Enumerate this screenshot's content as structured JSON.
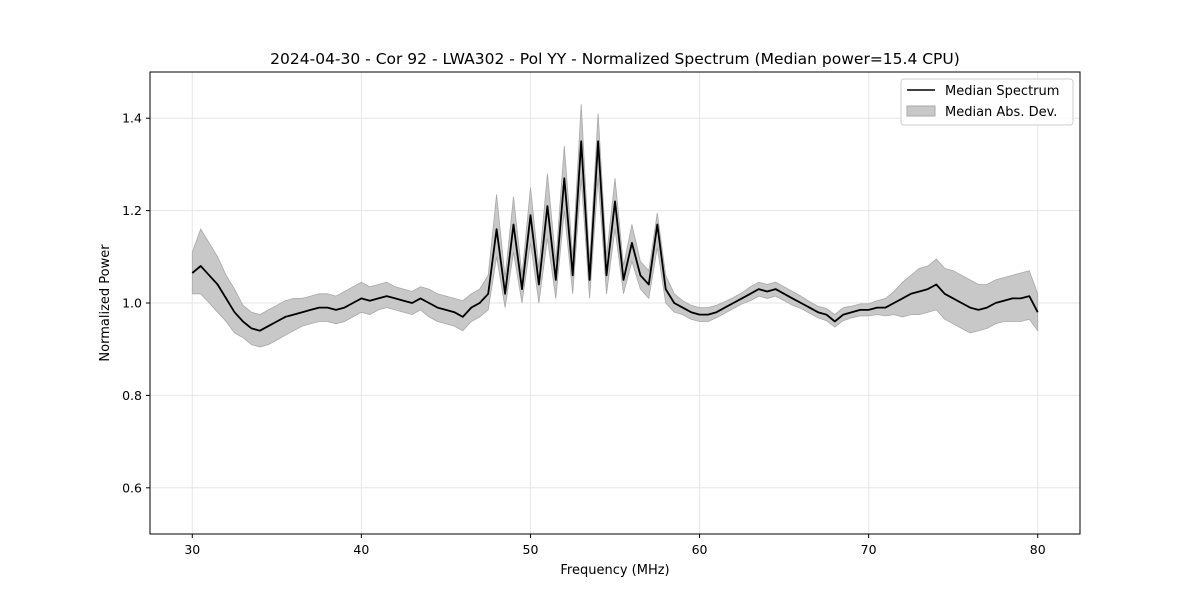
{
  "chart_data": {
    "type": "line",
    "title": "2024-04-30 - Cor 92 - LWA302 - Pol YY - Normalized Spectrum (Median power=15.4 CPU)",
    "xlabel": "Frequency (MHz)",
    "ylabel": "Normalized Power",
    "xlim": [
      27.5,
      82.5
    ],
    "ylim": [
      0.5,
      1.5
    ],
    "x_ticks": [
      30,
      40,
      50,
      60,
      70,
      80
    ],
    "x_tick_labels": [
      "30",
      "40",
      "50",
      "60",
      "70",
      "80"
    ],
    "y_ticks": [
      0.6,
      0.8,
      1.0,
      1.2,
      1.4
    ],
    "y_tick_labels": [
      "0.6",
      "0.8",
      "1.0",
      "1.2",
      "1.4"
    ],
    "grid": true,
    "legend_position": "top-right",
    "legend": [
      {
        "label": "Median Spectrum",
        "kind": "line",
        "color": "#000000"
      },
      {
        "label": "Median Abs. Dev.",
        "kind": "band",
        "color": "#c8c8c8"
      }
    ],
    "colors": {
      "line": "#000000",
      "band": "#c8c8c8",
      "band_edge": "#a8a8a8",
      "grid": "#e6e6e6"
    },
    "series": [
      {
        "name": "Median Spectrum",
        "x": [
          30.0,
          30.5,
          31.0,
          31.5,
          32.0,
          32.5,
          33.0,
          33.5,
          34.0,
          34.5,
          35.0,
          35.5,
          36.0,
          36.5,
          37.0,
          37.5,
          38.0,
          38.5,
          39.0,
          39.5,
          40.0,
          40.5,
          41.0,
          41.5,
          42.0,
          42.5,
          43.0,
          43.5,
          44.0,
          44.5,
          45.0,
          45.5,
          46.0,
          46.5,
          47.0,
          47.5,
          48.0,
          48.5,
          49.0,
          49.5,
          50.0,
          50.5,
          51.0,
          51.5,
          52.0,
          52.5,
          53.0,
          53.5,
          54.0,
          54.5,
          55.0,
          55.5,
          56.0,
          56.5,
          57.0,
          57.5,
          58.0,
          58.5,
          59.0,
          59.5,
          60.0,
          60.5,
          61.0,
          61.5,
          62.0,
          62.5,
          63.0,
          63.5,
          64.0,
          64.5,
          65.0,
          65.5,
          66.0,
          66.5,
          67.0,
          67.5,
          68.0,
          68.5,
          69.0,
          69.5,
          70.0,
          70.5,
          71.0,
          71.5,
          72.0,
          72.5,
          73.0,
          73.5,
          74.0,
          74.5,
          75.0,
          75.5,
          76.0,
          76.5,
          77.0,
          77.5,
          78.0,
          78.5,
          79.0,
          79.5,
          80.0
        ],
        "values": [
          1.065,
          1.08,
          1.06,
          1.04,
          1.01,
          0.98,
          0.96,
          0.945,
          0.94,
          0.95,
          0.96,
          0.97,
          0.975,
          0.98,
          0.985,
          0.99,
          0.99,
          0.985,
          0.99,
          1.0,
          1.01,
          1.005,
          1.01,
          1.015,
          1.01,
          1.005,
          1.0,
          1.01,
          1.0,
          0.99,
          0.985,
          0.98,
          0.97,
          0.99,
          1.0,
          1.02,
          1.16,
          1.02,
          1.17,
          1.03,
          1.19,
          1.04,
          1.21,
          1.05,
          1.27,
          1.06,
          1.35,
          1.05,
          1.35,
          1.06,
          1.22,
          1.05,
          1.13,
          1.06,
          1.04,
          1.17,
          1.03,
          1.0,
          0.99,
          0.98,
          0.975,
          0.975,
          0.98,
          0.99,
          1.0,
          1.01,
          1.02,
          1.03,
          1.025,
          1.03,
          1.02,
          1.01,
          1.0,
          0.99,
          0.98,
          0.975,
          0.96,
          0.975,
          0.98,
          0.985,
          0.985,
          0.99,
          0.99,
          1.0,
          1.01,
          1.02,
          1.025,
          1.03,
          1.04,
          1.02,
          1.01,
          1.0,
          0.99,
          0.985,
          0.99,
          1.0,
          1.005,
          1.01,
          1.01,
          1.015,
          0.98
        ]
      },
      {
        "name": "Median Abs. Dev.",
        "x": [
          30.0,
          30.5,
          31.0,
          31.5,
          32.0,
          32.5,
          33.0,
          33.5,
          34.0,
          34.5,
          35.0,
          35.5,
          36.0,
          36.5,
          37.0,
          37.5,
          38.0,
          38.5,
          39.0,
          39.5,
          40.0,
          40.5,
          41.0,
          41.5,
          42.0,
          42.5,
          43.0,
          43.5,
          44.0,
          44.5,
          45.0,
          45.5,
          46.0,
          46.5,
          47.0,
          47.5,
          48.0,
          48.5,
          49.0,
          49.5,
          50.0,
          50.5,
          51.0,
          51.5,
          52.0,
          52.5,
          53.0,
          53.5,
          54.0,
          54.5,
          55.0,
          55.5,
          56.0,
          56.5,
          57.0,
          57.5,
          58.0,
          58.5,
          59.0,
          59.5,
          60.0,
          60.5,
          61.0,
          61.5,
          62.0,
          62.5,
          63.0,
          63.5,
          64.0,
          64.5,
          65.0,
          65.5,
          66.0,
          66.5,
          67.0,
          67.5,
          68.0,
          68.5,
          69.0,
          69.5,
          70.0,
          70.5,
          71.0,
          71.5,
          72.0,
          72.5,
          73.0,
          73.5,
          74.0,
          74.5,
          75.0,
          75.5,
          76.0,
          76.5,
          77.0,
          77.5,
          78.0,
          78.5,
          79.0,
          79.5,
          80.0
        ],
        "lower": [
          1.02,
          1.02,
          1.0,
          0.98,
          0.96,
          0.935,
          0.925,
          0.91,
          0.905,
          0.91,
          0.92,
          0.93,
          0.94,
          0.95,
          0.955,
          0.96,
          0.96,
          0.955,
          0.96,
          0.97,
          0.98,
          0.975,
          0.985,
          0.99,
          0.985,
          0.98,
          0.975,
          0.985,
          0.97,
          0.96,
          0.955,
          0.95,
          0.94,
          0.96,
          0.97,
          0.985,
          1.1,
          0.99,
          1.11,
          1.0,
          1.13,
          1.0,
          1.14,
          1.01,
          1.2,
          1.02,
          1.27,
          1.01,
          1.27,
          1.02,
          1.16,
          1.02,
          1.09,
          1.03,
          1.01,
          1.12,
          1.0,
          0.98,
          0.975,
          0.965,
          0.96,
          0.96,
          0.968,
          0.978,
          0.988,
          0.998,
          1.005,
          1.015,
          1.01,
          1.015,
          1.005,
          0.995,
          0.988,
          0.978,
          0.968,
          0.962,
          0.948,
          0.962,
          0.968,
          0.972,
          0.972,
          0.975,
          0.972,
          0.975,
          0.97,
          0.975,
          0.975,
          0.98,
          0.985,
          0.965,
          0.955,
          0.945,
          0.935,
          0.94,
          0.945,
          0.955,
          0.96,
          0.96,
          0.96,
          0.965,
          0.94
        ]
      },
      {
        "name": "Median Abs. Dev. upper",
        "x": [
          30.0,
          30.5,
          31.0,
          31.5,
          32.0,
          32.5,
          33.0,
          33.5,
          34.0,
          34.5,
          35.0,
          35.5,
          36.0,
          36.5,
          37.0,
          37.5,
          38.0,
          38.5,
          39.0,
          39.5,
          40.0,
          40.5,
          41.0,
          41.5,
          42.0,
          42.5,
          43.0,
          43.5,
          44.0,
          44.5,
          45.0,
          45.5,
          46.0,
          46.5,
          47.0,
          47.5,
          48.0,
          48.5,
          49.0,
          49.5,
          50.0,
          50.5,
          51.0,
          51.5,
          52.0,
          52.5,
          53.0,
          53.5,
          54.0,
          54.5,
          55.0,
          55.5,
          56.0,
          56.5,
          57.0,
          57.5,
          58.0,
          58.5,
          59.0,
          59.5,
          60.0,
          60.5,
          61.0,
          61.5,
          62.0,
          62.5,
          63.0,
          63.5,
          64.0,
          64.5,
          65.0,
          65.5,
          66.0,
          66.5,
          67.0,
          67.5,
          68.0,
          68.5,
          69.0,
          69.5,
          70.0,
          70.5,
          71.0,
          71.5,
          72.0,
          72.5,
          73.0,
          73.5,
          74.0,
          74.5,
          75.0,
          75.5,
          76.0,
          76.5,
          77.0,
          77.5,
          78.0,
          78.5,
          79.0,
          79.5,
          80.0
        ],
        "upper": [
          1.11,
          1.16,
          1.13,
          1.1,
          1.06,
          1.03,
          0.995,
          0.98,
          0.975,
          0.985,
          0.995,
          1.005,
          1.01,
          1.01,
          1.015,
          1.02,
          1.02,
          1.015,
          1.025,
          1.035,
          1.045,
          1.035,
          1.04,
          1.045,
          1.035,
          1.03,
          1.025,
          1.035,
          1.03,
          1.02,
          1.015,
          1.01,
          1.005,
          1.02,
          1.03,
          1.06,
          1.235,
          1.055,
          1.23,
          1.06,
          1.25,
          1.075,
          1.28,
          1.09,
          1.34,
          1.1,
          1.43,
          1.09,
          1.41,
          1.1,
          1.27,
          1.08,
          1.17,
          1.09,
          1.07,
          1.195,
          1.06,
          1.02,
          1.005,
          0.995,
          0.99,
          0.99,
          0.995,
          1.003,
          1.012,
          1.022,
          1.035,
          1.045,
          1.04,
          1.045,
          1.035,
          1.025,
          1.015,
          1.003,
          0.993,
          0.988,
          0.975,
          0.99,
          0.993,
          0.998,
          0.998,
          1.005,
          1.01,
          1.025,
          1.045,
          1.06,
          1.075,
          1.08,
          1.095,
          1.075,
          1.07,
          1.06,
          1.05,
          1.04,
          1.04,
          1.05,
          1.055,
          1.06,
          1.065,
          1.07,
          1.02
        ]
      }
    ]
  }
}
